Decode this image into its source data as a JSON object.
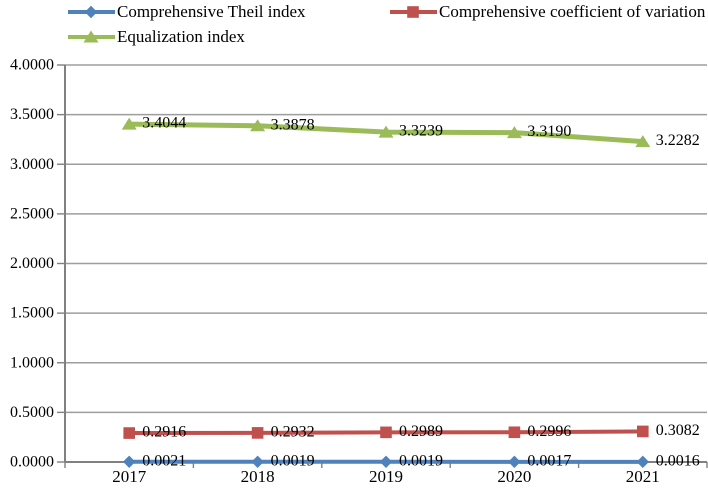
{
  "chart_data": {
    "type": "line",
    "title": "",
    "xlabel": "",
    "ylabel": "",
    "categories": [
      "2017",
      "2018",
      "2019",
      "2020",
      "2021"
    ],
    "series": [
      {
        "id": "theil-index",
        "name": "Comprehensive Theil index",
        "marker": "diamond",
        "color": "#4F81BD",
        "values": [
          0.0021,
          0.0019,
          0.0019,
          0.0017,
          0.0016
        ]
      },
      {
        "id": "coefficient-of-variation",
        "name": "Comprehensive coefficient of variation",
        "marker": "square",
        "color": "#C0504D",
        "values": [
          0.2916,
          0.2932,
          0.2989,
          0.2996,
          0.3082
        ]
      },
      {
        "id": "equalization-index",
        "name": "Equalization index",
        "marker": "triangle",
        "color": "#9BBB59",
        "values": [
          3.4044,
          3.3878,
          3.3239,
          3.319,
          3.2282
        ]
      }
    ],
    "ylim": [
      0,
      4
    ],
    "y_tick_step": 0.5,
    "y_tick_decimals": 4,
    "data_label_decimals": 4,
    "y_tick_labels": [
      "0.0000",
      "0.5000",
      "1.0000",
      "1.5000",
      "2.0000",
      "2.5000",
      "3.0000",
      "3.5000",
      "4.0000"
    ],
    "grid": true,
    "legend_position": "top-left",
    "axis_color": "#808080",
    "grid_color": "#9D9D9D",
    "text_color": "#000000",
    "background_color": "#FFFFFF"
  }
}
